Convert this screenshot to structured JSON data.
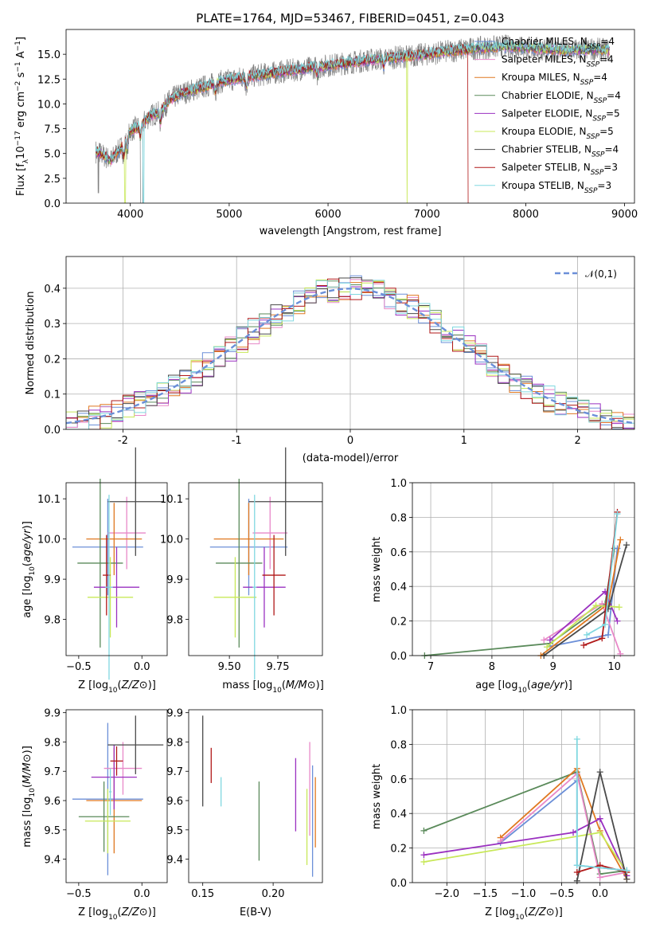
{
  "colors": {
    "chabrier_miles": "#6b8fd8",
    "salpeter_miles": "#e888c8",
    "kroupa_miles": "#e07820",
    "chabrier_elodie": "#5a8a5a",
    "salpeter_elodie": "#9a30c0",
    "kroupa_elodie": "#c8e858",
    "chabrier_stelib": "#4a4a4a",
    "salpeter_stelib": "#b01818",
    "kroupa_stelib": "#80d8e0",
    "data": "#808080",
    "normal": "#6b8fd8"
  },
  "chart_data": [
    {
      "type": "line",
      "title": "PLATE=1764, MJD=53467, FIBERID=0451, z=0.043",
      "xlabel": "wavelength [Angstrom, rest frame]",
      "ylabel": "Flux [f_λ 10^-17 erg cm^-2 s^-1 A^-1]",
      "xlim": [
        3350,
        9100
      ],
      "ylim": [
        0,
        17.5
      ],
      "xticks": [
        4000,
        5000,
        6000,
        7000,
        8000,
        9000
      ],
      "yticks": [
        0.0,
        2.5,
        5.0,
        7.5,
        10.0,
        12.5,
        15.0
      ],
      "ytick_labels": [
        "0.0",
        "2.5",
        "5.0",
        "7.5",
        "10.0",
        "12.5",
        "15.0"
      ],
      "legend": "upper right",
      "series": [
        {
          "name": "Chabrier MILES, N_SSP=4"
        },
        {
          "name": "Salpeter MILES, N_SSP=4"
        },
        {
          "name": "Kroupa MILES, N_SSP=4"
        },
        {
          "name": "Chabrier ELODIE, N_SSP=4"
        },
        {
          "name": "Salpeter ELODIE, N_SSP=5"
        },
        {
          "name": "Kroupa ELODIE, N_SSP=5"
        },
        {
          "name": "Chabrier STELIB, N_SSP=4"
        },
        {
          "name": "Salpeter STELIB, N_SSP=3"
        },
        {
          "name": "Kroupa STELIB, N_SSP=3"
        }
      ],
      "continuum": {
        "x": [
          3650,
          3700,
          3800,
          3900,
          4000,
          4100,
          4200,
          4300,
          4400,
          4500,
          4700,
          4900,
          5100,
          5300,
          5500,
          5800,
          6100,
          6400,
          6700,
          7000,
          7300,
          7500,
          7800,
          8100,
          8400,
          8700,
          8850
        ],
        "y": [
          5.2,
          5.0,
          4.3,
          5.5,
          7.3,
          7.8,
          8.8,
          9.2,
          10.4,
          11.0,
          11.6,
          12.2,
          12.6,
          12.9,
          13.2,
          13.6,
          14.0,
          14.4,
          14.7,
          15.0,
          15.4,
          15.6,
          15.8,
          15.6,
          15.4,
          15.5,
          15.4
        ]
      },
      "model_drop_wavelengths": {
        "kroupa_elodie": 6800,
        "salpeter_stelib": 7420
      }
    },
    {
      "type": "bar",
      "subtype": "step-histogram",
      "xlabel": "(data-model)/error",
      "ylabel": "Normed distribution",
      "xlim": [
        -2.5,
        2.5
      ],
      "ylim": [
        0,
        0.49
      ],
      "xticks": [
        -2,
        -1,
        0,
        1,
        2
      ],
      "yticks": [
        0.0,
        0.1,
        0.2,
        0.3,
        0.4
      ],
      "ytick_labels": [
        "0.0",
        "0.1",
        "0.2",
        "0.3",
        "0.4"
      ],
      "bin_width": 0.1,
      "legend_label": "𝒩(0,1)",
      "legend": "upper right",
      "grid": true
    },
    {
      "type": "scatter",
      "subtype": "errorbar",
      "xlabel": "Z [log10(Z/Z⊙)]",
      "ylabel": "age  [log10(age/yr)]",
      "xlim": [
        -0.6,
        0.2
      ],
      "ylim": [
        9.71,
        10.14
      ],
      "xticks": [
        -0.5,
        0.0
      ],
      "xtick_labels": [
        "−0.5",
        "0.0"
      ],
      "yticks": [
        9.8,
        9.9,
        10.0,
        10.1
      ],
      "ytick_labels": [
        "9.8",
        "9.9",
        "10.0",
        "10.1"
      ],
      "points": [
        {
          "model": "chabrier_miles",
          "x": -0.27,
          "y": 9.98,
          "xerr": 0.28,
          "yerr": 0.12
        },
        {
          "model": "salpeter_miles",
          "x": -0.12,
          "y": 10.015,
          "xerr": 0.15,
          "yerr": 0.09
        },
        {
          "model": "kroupa_miles",
          "x": -0.22,
          "y": 10.0,
          "xerr": 0.22,
          "yerr": 0.09
        },
        {
          "model": "chabrier_elodie",
          "x": -0.33,
          "y": 9.94,
          "xerr": 0.18,
          "yerr": 0.21
        },
        {
          "model": "salpeter_elodie",
          "x": -0.2,
          "y": 9.88,
          "xerr": 0.18,
          "yerr": 0.1
        },
        {
          "model": "kroupa_elodie",
          "x": -0.25,
          "y": 9.855,
          "xerr": 0.18,
          "yerr": 0.1
        },
        {
          "model": "chabrier_stelib",
          "x": -0.05,
          "y": 10.093,
          "xerr": 0.22,
          "yerr": 0.135
        },
        {
          "model": "salpeter_stelib",
          "x": -0.28,
          "y": 9.91,
          "xerr": 0.03,
          "yerr": 0.1
        },
        {
          "model": "kroupa_stelib",
          "x": -0.26,
          "y": 9.88,
          "xerr": 0.03,
          "yerr": 0.23
        }
      ]
    },
    {
      "type": "scatter",
      "subtype": "errorbar",
      "xlabel": "mass [log10(M/M⊙)]",
      "ylabel": "",
      "xlim": [
        9.29,
        9.98
      ],
      "ylim": [
        9.71,
        10.14
      ],
      "xticks": [
        9.5,
        9.75
      ],
      "xtick_labels": [
        "9.50",
        "9.75"
      ],
      "yticks": [
        9.8,
        9.9,
        10.0,
        10.1
      ],
      "ytick_labels": [
        "9.8",
        "9.9",
        "10.0",
        "10.1"
      ],
      "points": [
        {
          "model": "chabrier_miles",
          "x": 9.6,
          "y": 9.98,
          "xerr": 0.2,
          "yerr": 0.12
        },
        {
          "model": "salpeter_miles",
          "x": 9.71,
          "y": 10.015,
          "xerr": 0.09,
          "yerr": 0.09
        },
        {
          "model": "kroupa_miles",
          "x": 9.6,
          "y": 10.0,
          "xerr": 0.18,
          "yerr": 0.09
        },
        {
          "model": "chabrier_elodie",
          "x": 9.55,
          "y": 9.94,
          "xerr": 0.12,
          "yerr": 0.21
        },
        {
          "model": "salpeter_elodie",
          "x": 9.68,
          "y": 9.88,
          "xerr": 0.11,
          "yerr": 0.1
        },
        {
          "model": "kroupa_elodie",
          "x": 9.53,
          "y": 9.855,
          "xerr": 0.11,
          "yerr": 0.1
        },
        {
          "model": "chabrier_stelib",
          "x": 9.79,
          "y": 10.093,
          "xerr": 0.19,
          "yerr": 0.135
        },
        {
          "model": "salpeter_stelib",
          "x": 9.73,
          "y": 9.91,
          "xerr": 0.06,
          "yerr": 0.1
        },
        {
          "model": "kroupa_stelib",
          "x": 9.63,
          "y": 9.88,
          "xerr": 0.01,
          "yerr": 0.23
        }
      ]
    },
    {
      "type": "line",
      "xlabel": "age  [log10(age/yr)]",
      "ylabel": "mass weight",
      "xlim": [
        6.7,
        10.33
      ],
      "ylim": [
        0,
        1
      ],
      "xticks": [
        7,
        8,
        9,
        10
      ],
      "yticks": [
        0.0,
        0.2,
        0.4,
        0.6,
        0.8,
        1.0
      ],
      "ytick_labels": [
        "0.0",
        "0.2",
        "0.4",
        "0.6",
        "0.8",
        "1.0"
      ],
      "grid": true,
      "series": [
        {
          "model": "chabrier_elodie",
          "x": [
            6.9,
            8.95,
            9.85,
            10.0
          ],
          "y": [
            0.0,
            0.07,
            0.3,
            0.62
          ]
        },
        {
          "model": "chabrier_miles",
          "x": [
            8.9,
            9.9,
            10.05
          ],
          "y": [
            0.05,
            0.12,
            0.62
          ]
        },
        {
          "model": "salpeter_miles",
          "x": [
            8.85,
            9.8,
            10.1
          ],
          "y": [
            0.09,
            0.3,
            0.01
          ]
        },
        {
          "model": "kroupa_miles",
          "x": [
            8.8,
            9.9,
            10.1
          ],
          "y": [
            0.0,
            0.3,
            0.67
          ]
        },
        {
          "model": "salpeter_elodie",
          "x": [
            8.95,
            9.85,
            10.05
          ],
          "y": [
            0.09,
            0.37,
            0.2
          ]
        },
        {
          "model": "kroupa_elodie",
          "x": [
            8.9,
            9.7,
            10.08
          ],
          "y": [
            0.05,
            0.29,
            0.28
          ]
        },
        {
          "model": "chabrier_stelib",
          "x": [
            8.85,
            9.9,
            10.2
          ],
          "y": [
            0.0,
            0.27,
            0.64
          ]
        },
        {
          "model": "salpeter_stelib",
          "x": [
            9.5,
            9.8,
            10.05
          ],
          "y": [
            0.06,
            0.1,
            0.83
          ]
        },
        {
          "model": "kroupa_stelib",
          "x": [
            9.55,
            9.85,
            10.05
          ],
          "y": [
            0.12,
            0.18,
            0.82
          ]
        }
      ]
    },
    {
      "type": "scatter",
      "subtype": "errorbar",
      "xlabel": "Z [log10(Z/Z⊙)]",
      "ylabel": "mass [log10(M/M⊙)]",
      "xlim": [
        -0.6,
        0.2
      ],
      "ylim": [
        9.32,
        9.91
      ],
      "xticks": [
        -0.5,
        0.0
      ],
      "xtick_labels": [
        "−0.5",
        "0.0"
      ],
      "yticks": [
        9.4,
        9.5,
        9.6,
        9.7,
        9.8,
        9.9
      ],
      "ytick_labels": [
        "9.4",
        "9.5",
        "9.6",
        "9.7",
        "9.8",
        "9.9"
      ],
      "points": [
        {
          "model": "chabrier_miles",
          "x": -0.27,
          "y": 9.605,
          "xerr": 0.28,
          "yerr": 0.26
        },
        {
          "model": "salpeter_miles",
          "x": -0.15,
          "y": 9.71,
          "xerr": 0.15,
          "yerr": 0.09
        },
        {
          "model": "kroupa_miles",
          "x": -0.22,
          "y": 9.6,
          "xerr": 0.22,
          "yerr": 0.18
        },
        {
          "model": "chabrier_elodie",
          "x": -0.3,
          "y": 9.545,
          "xerr": 0.2,
          "yerr": 0.12
        },
        {
          "model": "salpeter_elodie",
          "x": -0.22,
          "y": 9.68,
          "xerr": 0.18,
          "yerr": 0.11
        },
        {
          "model": "kroupa_elodie",
          "x": -0.27,
          "y": 9.53,
          "xerr": 0.18,
          "yerr": 0.11
        },
        {
          "model": "chabrier_stelib",
          "x": -0.05,
          "y": 9.79,
          "xerr": 0.22,
          "yerr": 0.1
        },
        {
          "model": "salpeter_stelib",
          "x": -0.2,
          "y": 9.735,
          "xerr": 0.05,
          "yerr": 0.05
        },
        {
          "model": "kroupa_stelib",
          "x": -0.25,
          "y": 9.63,
          "xerr": 0.01,
          "yerr": 0.08
        }
      ]
    },
    {
      "type": "scatter",
      "subtype": "errorbar",
      "xlabel": "E(B-V)",
      "ylabel": "",
      "xlim": [
        0.14,
        0.235
      ],
      "ylim": [
        9.32,
        9.91
      ],
      "xticks": [
        0.15,
        0.2
      ],
      "xtick_labels": [
        "0.15",
        "0.20"
      ],
      "yticks": [
        9.4,
        9.5,
        9.6,
        9.7,
        9.8,
        9.9
      ],
      "ytick_labels": [
        "9.4",
        "9.5",
        "9.6",
        "9.7",
        "9.8",
        "9.9"
      ],
      "points": [
        {
          "model": "chabrier_stelib",
          "x": 0.15,
          "y": 9.735,
          "yerr": 0.155
        },
        {
          "model": "salpeter_stelib",
          "x": 0.156,
          "y": 9.72,
          "yerr": 0.06
        },
        {
          "model": "kroupa_stelib",
          "x": 0.163,
          "y": 9.63,
          "yerr": 0.05
        },
        {
          "model": "chabrier_elodie",
          "x": 0.19,
          "y": 9.53,
          "yerr": 0.135
        },
        {
          "model": "salpeter_elodie",
          "x": 0.216,
          "y": 9.62,
          "yerr": 0.125
        },
        {
          "model": "kroupa_elodie",
          "x": 0.224,
          "y": 9.51,
          "yerr": 0.13
        },
        {
          "model": "salpeter_miles",
          "x": 0.226,
          "y": 9.64,
          "yerr": 0.16
        },
        {
          "model": "chabrier_miles",
          "x": 0.228,
          "y": 9.53,
          "yerr": 0.19
        },
        {
          "model": "kroupa_miles",
          "x": 0.23,
          "y": 9.56,
          "yerr": 0.12
        }
      ]
    },
    {
      "type": "line",
      "xlabel": "Z [log10(Z/Z⊙)]",
      "ylabel": "mass weight",
      "xlim": [
        -2.45,
        0.45
      ],
      "ylim": [
        0,
        1
      ],
      "xticks": [
        -2.0,
        -1.5,
        -1.0,
        -0.5,
        0.0
      ],
      "xtick_labels": [
        "−2.0",
        "−1.5",
        "−1.0",
        "−0.5",
        "0.0"
      ],
      "yticks": [
        0.0,
        0.2,
        0.4,
        0.6,
        0.8,
        1.0
      ],
      "ytick_labels": [
        "0.0",
        "0.2",
        "0.4",
        "0.6",
        "0.8",
        "1.0"
      ],
      "grid": true,
      "series": [
        {
          "model": "chabrier_elodie",
          "x": [
            -2.3,
            -0.3,
            0.0,
            0.35
          ],
          "y": [
            0.3,
            0.64,
            0.05,
            0.07
          ]
        },
        {
          "model": "kroupa_miles",
          "x": [
            -1.3,
            -0.3,
            0.0,
            0.35
          ],
          "y": [
            0.26,
            0.66,
            0.3,
            0.02
          ]
        },
        {
          "model": "chabrier_miles",
          "x": [
            -1.3,
            -0.3,
            -0.3,
            0.35
          ],
          "y": [
            0.23,
            0.59,
            0.1,
            0.07
          ]
        },
        {
          "model": "salpeter_miles",
          "x": [
            -1.3,
            -0.3,
            0.0,
            0.35
          ],
          "y": [
            0.24,
            0.63,
            0.03,
            0.06
          ]
        },
        {
          "model": "salpeter_elodie",
          "x": [
            -2.3,
            -0.35,
            0.0,
            0.35
          ],
          "y": [
            0.16,
            0.29,
            0.37,
            0.04
          ]
        },
        {
          "model": "kroupa_elodie",
          "x": [
            -2.3,
            0.0,
            0.35
          ],
          "y": [
            0.12,
            0.29,
            0.06
          ]
        },
        {
          "model": "chabrier_stelib",
          "x": [
            -0.3,
            0.0,
            0.35
          ],
          "y": [
            0.01,
            0.64,
            0.02
          ]
        },
        {
          "model": "salpeter_stelib",
          "x": [
            -0.3,
            0.0,
            0.35
          ],
          "y": [
            0.06,
            0.1,
            0.06
          ]
        },
        {
          "model": "kroupa_stelib",
          "x": [
            -0.3,
            -0.3,
            0.35
          ],
          "y": [
            0.83,
            0.1,
            0.07
          ]
        }
      ]
    }
  ]
}
